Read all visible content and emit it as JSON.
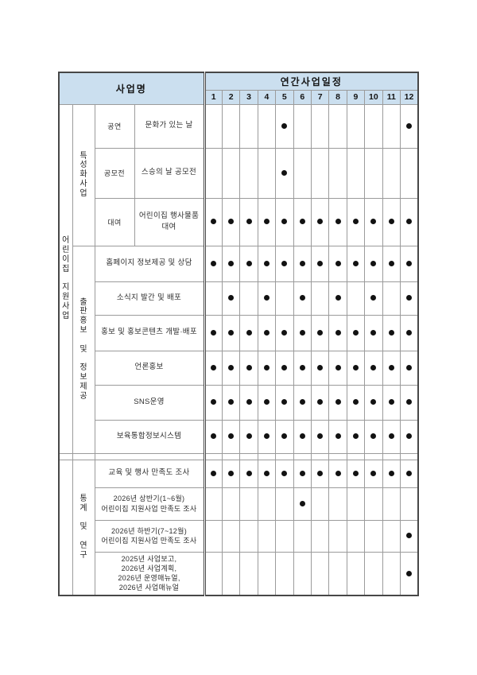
{
  "colors": {
    "header_bg": "#cbdfef",
    "grid_line": "#9b9b9b",
    "outer_border": "#474747",
    "dot": "#121212",
    "text": "#2e2e2e"
  },
  "table": {
    "header": {
      "business_name_label": "사업명",
      "schedule_label": "연간사업일정",
      "months": [
        "1",
        "2",
        "3",
        "4",
        "5",
        "6",
        "7",
        "8",
        "9",
        "10",
        "11",
        "12"
      ]
    },
    "categories": {
      "main": "어린이집 지원사업",
      "groups": [
        "특성화사업",
        "출판홍보 및 정보제공",
        "통계 및 연구"
      ]
    },
    "rows": [
      {
        "sub": "공연",
        "name": "문화가 있는 날",
        "months": [
          5,
          12
        ]
      },
      {
        "sub": "공모전",
        "name": "스승의 날 공모전",
        "months": [
          5
        ]
      },
      {
        "sub": "대여",
        "name": "어린이집 행사물품 대여",
        "months": [
          1,
          2,
          3,
          4,
          5,
          6,
          7,
          8,
          9,
          10,
          11,
          12
        ]
      },
      {
        "name": "홈페이지 정보제공 및 상담",
        "months": [
          1,
          2,
          3,
          4,
          5,
          6,
          7,
          8,
          9,
          10,
          11,
          12
        ]
      },
      {
        "name": "소식지 발간 및 배포",
        "months": [
          2,
          4,
          6,
          8,
          10,
          12
        ]
      },
      {
        "name": "홍보 및 홍보콘텐츠 개발·배포",
        "months": [
          1,
          2,
          3,
          4,
          5,
          6,
          7,
          8,
          9,
          10,
          11,
          12
        ]
      },
      {
        "name": "언론홍보",
        "months": [
          1,
          2,
          3,
          4,
          5,
          6,
          7,
          8,
          9,
          10,
          11,
          12
        ]
      },
      {
        "name": "SNS운영",
        "months": [
          1,
          2,
          3,
          4,
          5,
          6,
          7,
          8,
          9,
          10,
          11,
          12
        ]
      },
      {
        "name": "보육통합정보시스템",
        "months": [
          1,
          2,
          3,
          4,
          5,
          6,
          7,
          8,
          9,
          10,
          11,
          12
        ]
      },
      {
        "name": "교육 및 행사 만족도 조사",
        "months": [
          1,
          2,
          3,
          4,
          5,
          6,
          7,
          8,
          9,
          10,
          11,
          12
        ]
      },
      {
        "name": "2026년 상반기(1~6월)\n어린이집 지원사업 만족도 조사",
        "months": [
          6
        ]
      },
      {
        "name": "2026년 하반기(7~12월)\n어린이집 지원사업 만족도 조사",
        "months": [
          12
        ]
      },
      {
        "name": "2025년 사업보고,\n2026년 사업계획,\n2026년 운영매뉴얼,\n2026년 사업매뉴얼",
        "months": [
          12
        ]
      }
    ]
  }
}
